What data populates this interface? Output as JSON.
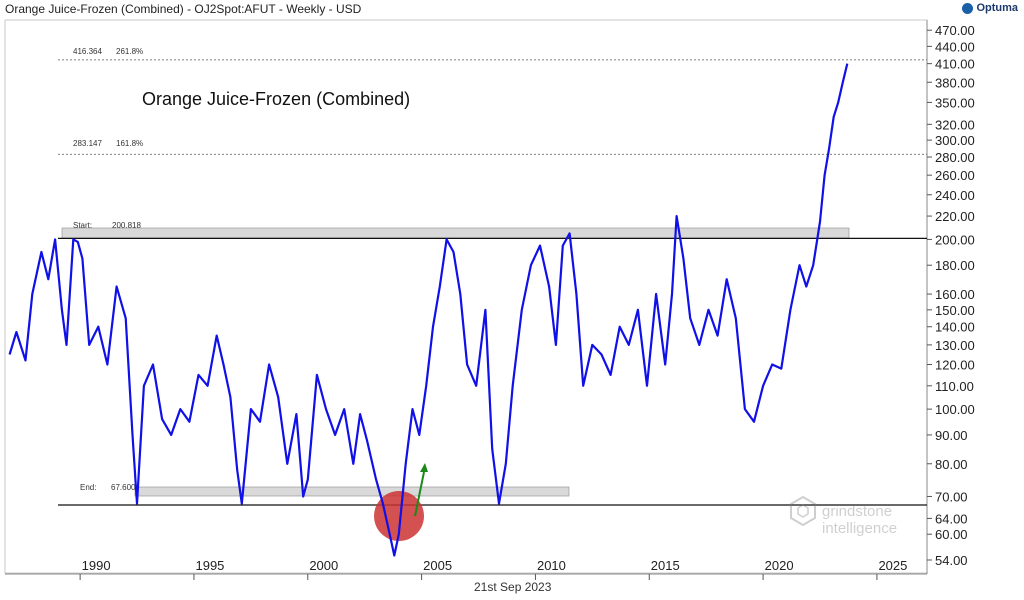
{
  "header": {
    "title": "Orange Juice-Frozen (Combined) - OJ2Spot:AFUT - Weekly - USD",
    "brand": "Optuma"
  },
  "footer": {
    "date": "21st Sep 2023"
  },
  "watermark": {
    "line1": "grindstone",
    "line2": "intelligence"
  },
  "colors": {
    "series": "#1010e8",
    "zone": "#d9d9d9",
    "circle": "#cc3333",
    "arrow": "#1a8a1a"
  },
  "icons": {
    "brand": "optuma-logo-icon",
    "watermark": "grindstone-logo-icon"
  },
  "chart_data": {
    "type": "line",
    "title": "Orange Juice-Frozen (Combined)",
    "y_scale": "log",
    "ylim": [
      51,
      490
    ],
    "xlim": [
      1986.7,
      2027.2
    ],
    "y_ticks": [
      54,
      60,
      64,
      70,
      80,
      90,
      100,
      110,
      120,
      130,
      140,
      150,
      160,
      180,
      200,
      220,
      240,
      260,
      280,
      300,
      320,
      350,
      380,
      410,
      440,
      470
    ],
    "y_tick_labels": [
      "54.00",
      "60.00",
      "64.00",
      "70.00",
      "80.00",
      "90.00",
      "100.00",
      "110.00",
      "120.00",
      "130.00",
      "140.00",
      "150.00",
      "160.00",
      "180.00",
      "200.00",
      "220.00",
      "240.00",
      "260.00",
      "280.00",
      "300.00",
      "320.00",
      "350.00",
      "380.00",
      "410.00",
      "440.00",
      "470.00"
    ],
    "x_ticks": [
      1990,
      1995,
      2000,
      2005,
      2010,
      2015,
      2020,
      2025
    ],
    "x_tick_labels": [
      "1990",
      "1995",
      "2000",
      "2005",
      "2010",
      "2015",
      "2020",
      "2025"
    ],
    "series": [
      {
        "x": [
          1986.9,
          1987.2,
          1987.6,
          1987.9,
          1988.3,
          1988.6,
          1988.9,
          1989.2,
          1989.4,
          1989.7,
          1989.9,
          1990.1,
          1990.4,
          1990.8,
          1991.2,
          1991.6,
          1992.0,
          1992.3,
          1992.5,
          1992.8,
          1993.2,
          1993.6,
          1994.0,
          1994.4,
          1994.8,
          1995.2,
          1995.6,
          1996.0,
          1996.3,
          1996.6,
          1996.9,
          1997.1,
          1997.5,
          1997.9,
          1998.3,
          1998.7,
          1999.1,
          1999.5,
          1999.8,
          2000.0,
          2000.4,
          2000.8,
          2001.2,
          2001.6,
          2002.0,
          2002.3,
          2002.6,
          2003.0,
          2003.3,
          2003.6,
          2003.8,
          2004.0,
          2004.3,
          2004.6,
          2004.9,
          2005.2,
          2005.5,
          2005.8,
          2006.1,
          2006.4,
          2006.7,
          2007.0,
          2007.4,
          2007.8,
          2008.1,
          2008.4,
          2008.7,
          2009.0,
          2009.4,
          2009.8,
          2010.2,
          2010.6,
          2010.9,
          2011.2,
          2011.5,
          2011.8,
          2012.1,
          2012.5,
          2012.9,
          2013.3,
          2013.7,
          2014.1,
          2014.5,
          2014.9,
          2015.3,
          2015.7,
          2016.0,
          2016.2,
          2016.5,
          2016.8,
          2017.2,
          2017.6,
          2018.0,
          2018.4,
          2018.8,
          2019.2,
          2019.6,
          2020.0,
          2020.4,
          2020.8,
          2021.2,
          2021.6,
          2021.9,
          2022.2,
          2022.5,
          2022.7,
          2022.9,
          2023.1,
          2023.3,
          2023.5,
          2023.7
        ],
        "values": [
          125,
          137,
          122,
          160,
          190,
          170,
          200,
          150,
          130,
          200,
          198,
          185,
          130,
          140,
          120,
          165,
          145,
          90,
          68,
          110,
          120,
          96,
          90,
          100,
          95,
          115,
          110,
          135,
          120,
          105,
          78,
          68,
          100,
          95,
          120,
          105,
          80,
          98,
          70,
          75,
          115,
          100,
          90,
          100,
          80,
          98,
          88,
          75,
          68,
          60,
          55,
          60,
          80,
          100,
          90,
          110,
          140,
          165,
          200,
          190,
          160,
          120,
          110,
          150,
          85,
          68,
          80,
          110,
          150,
          180,
          195,
          165,
          130,
          195,
          205,
          160,
          110,
          130,
          125,
          115,
          140,
          130,
          150,
          110,
          160,
          120,
          160,
          220,
          185,
          145,
          130,
          150,
          135,
          170,
          145,
          100,
          95,
          110,
          120,
          118,
          150,
          180,
          165,
          180,
          215,
          260,
          290,
          330,
          350,
          380,
          410
        ]
      }
    ],
    "annotations": [
      {
        "label": "416.364",
        "pct": "261.8%",
        "value": 416.364
      },
      {
        "label": "283.147",
        "pct": "161.8%",
        "value": 283.147
      },
      {
        "label": "Start:",
        "pct": "200.818",
        "value": 200.818
      },
      {
        "label": "End:",
        "pct": "67.600",
        "value": 67.6
      }
    ]
  }
}
